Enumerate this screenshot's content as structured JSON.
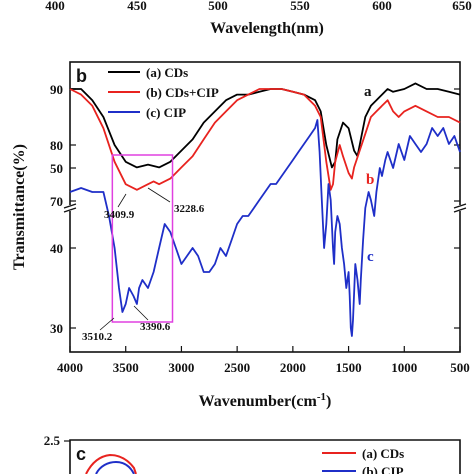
{
  "top_panel": {
    "xlabel": "Wavelength(nm)",
    "tick_labels": [
      "400",
      "450",
      "500",
      "550",
      "600",
      "650"
    ]
  },
  "chart_data": [
    {
      "type": "line",
      "panel": "b",
      "xlabel": "Wavenumber(cm",
      "xlabel_sup": "-1",
      "xlabel_close": ")",
      "ylabel": "Transmittance(%)",
      "xlim": [
        4000,
        500
      ],
      "x_ticks": [
        "4000",
        "3500",
        "3000",
        "2500",
        "2000",
        "1500",
        "1000",
        "500"
      ],
      "y_ticks_upper": [
        "90",
        "80",
        "70"
      ],
      "y_ticks_lower": [
        "50",
        "40",
        "30"
      ],
      "y_axis_break": true,
      "legend_position": "top-left",
      "colors": {
        "a": "#000000",
        "b": "#e8231f",
        "c": "#1f2fc8",
        "box": "#e040e0"
      },
      "series": [
        {
          "name": "(a) CDs",
          "letter": "a",
          "segment": "upper",
          "points": [
            [
              4000,
              90
            ],
            [
              3900,
              90
            ],
            [
              3800,
              88
            ],
            [
              3700,
              85
            ],
            [
              3600,
              80
            ],
            [
              3500,
              77
            ],
            [
              3400,
              76
            ],
            [
              3300,
              76.5
            ],
            [
              3200,
              76
            ],
            [
              3100,
              77
            ],
            [
              3000,
              79
            ],
            [
              2900,
              81
            ],
            [
              2800,
              84
            ],
            [
              2700,
              86
            ],
            [
              2600,
              88
            ],
            [
              2500,
              89
            ],
            [
              2400,
              89
            ],
            [
              2300,
              89.5
            ],
            [
              2200,
              90
            ],
            [
              2100,
              90
            ],
            [
              2000,
              89.5
            ],
            [
              1900,
              89
            ],
            [
              1800,
              88
            ],
            [
              1750,
              86
            ],
            [
              1700,
              80
            ],
            [
              1650,
              76
            ],
            [
              1620,
              77
            ],
            [
              1600,
              81
            ],
            [
              1550,
              84
            ],
            [
              1500,
              83
            ],
            [
              1450,
              79
            ],
            [
              1420,
              78
            ],
            [
              1400,
              80
            ],
            [
              1350,
              85
            ],
            [
              1300,
              87
            ],
            [
              1250,
              88
            ],
            [
              1200,
              89
            ],
            [
              1150,
              90
            ],
            [
              1100,
              89.5
            ],
            [
              1000,
              90
            ],
            [
              900,
              91
            ],
            [
              800,
              90
            ],
            [
              700,
              90
            ],
            [
              600,
              89.5
            ],
            [
              500,
              89
            ]
          ]
        },
        {
          "name": "(b) CDs+CIP",
          "letter": "b",
          "segment": "upper",
          "points": [
            [
              4000,
              90
            ],
            [
              3900,
              89
            ],
            [
              3800,
              87
            ],
            [
              3700,
              83
            ],
            [
              3600,
              77
            ],
            [
              3500,
              73
            ],
            [
              3400,
              72
            ],
            [
              3300,
              73
            ],
            [
              3250,
              73.5
            ],
            [
              3200,
              73
            ],
            [
              3100,
              74
            ],
            [
              3000,
              76
            ],
            [
              2900,
              78
            ],
            [
              2800,
              81
            ],
            [
              2700,
              84
            ],
            [
              2600,
              86
            ],
            [
              2500,
              88
            ],
            [
              2400,
              89
            ],
            [
              2300,
              90
            ],
            [
              2200,
              90
            ],
            [
              2100,
              90
            ],
            [
              2000,
              89.5
            ],
            [
              1900,
              89
            ],
            [
              1800,
              87
            ],
            [
              1750,
              85
            ],
            [
              1700,
              77
            ],
            [
              1660,
              72
            ],
            [
              1640,
              73
            ],
            [
              1620,
              77
            ],
            [
              1580,
              80
            ],
            [
              1550,
              78
            ],
            [
              1500,
              75
            ],
            [
              1470,
              74
            ],
            [
              1450,
              76
            ],
            [
              1400,
              79
            ],
            [
              1350,
              82
            ],
            [
              1300,
              85
            ],
            [
              1250,
              86
            ],
            [
              1200,
              87
            ],
            [
              1150,
              88
            ],
            [
              1100,
              86
            ],
            [
              1050,
              85
            ],
            [
              1000,
              86
            ],
            [
              900,
              87
            ],
            [
              800,
              86
            ],
            [
              700,
              85
            ],
            [
              600,
              85
            ],
            [
              500,
              84
            ]
          ]
        },
        {
          "name": "(c) CIP",
          "letter": "c",
          "segment": "lower",
          "points": [
            [
              4000,
              47
            ],
            [
              3900,
              47.5
            ],
            [
              3800,
              47
            ],
            [
              3700,
              47
            ],
            [
              3650,
              44
            ],
            [
              3600,
              40
            ],
            [
              3560,
              35
            ],
            [
              3530,
              32
            ],
            [
              3500,
              33
            ],
            [
              3470,
              35
            ],
            [
              3430,
              34
            ],
            [
              3400,
              33
            ],
            [
              3380,
              35
            ],
            [
              3350,
              36
            ],
            [
              3300,
              35
            ],
            [
              3250,
              37
            ],
            [
              3200,
              40
            ],
            [
              3150,
              43
            ],
            [
              3100,
              42
            ],
            [
              3050,
              40
            ],
            [
              3000,
              38
            ],
            [
              2950,
              39
            ],
            [
              2900,
              40
            ],
            [
              2850,
              39
            ],
            [
              2800,
              37
            ],
            [
              2750,
              37
            ],
            [
              2700,
              38
            ],
            [
              2650,
              40
            ],
            [
              2600,
              39
            ],
            [
              2550,
              41
            ],
            [
              2500,
              43
            ],
            [
              2450,
              44
            ],
            [
              2400,
              44
            ],
            [
              2350,
              45
            ],
            [
              2300,
              46
            ],
            [
              2250,
              47
            ],
            [
              2200,
              48
            ],
            [
              2150,
              48
            ],
            [
              2100,
              49
            ],
            [
              2050,
              50
            ],
            [
              2000,
              51
            ],
            [
              1950,
              52
            ],
            [
              1900,
              53
            ],
            [
              1850,
              54
            ],
            [
              1800,
              55
            ],
            [
              1780,
              56
            ],
            [
              1760,
              52
            ],
            [
              1740,
              46
            ],
            [
              1720,
              40
            ],
            [
              1700,
              43
            ],
            [
              1680,
              48
            ],
            [
              1660,
              46
            ],
            [
              1640,
              40
            ],
            [
              1630,
              38
            ],
            [
              1620,
              42
            ],
            [
              1600,
              44
            ],
            [
              1580,
              43
            ],
            [
              1560,
              40
            ],
            [
              1540,
              38
            ],
            [
              1520,
              35
            ],
            [
              1500,
              37
            ],
            [
              1490,
              34
            ],
            [
              1480,
              30
            ],
            [
              1470,
              29
            ],
            [
              1460,
              31
            ],
            [
              1440,
              38
            ],
            [
              1420,
              36
            ],
            [
              1400,
              33
            ],
            [
              1390,
              36
            ],
            [
              1370,
              41
            ],
            [
              1350,
              45
            ],
            [
              1320,
              47
            ],
            [
              1300,
              46
            ],
            [
              1270,
              44
            ],
            [
              1250,
              47
            ],
            [
              1220,
              50
            ],
            [
              1200,
              49
            ],
            [
              1170,
              51
            ],
            [
              1150,
              52
            ],
            [
              1100,
              50
            ],
            [
              1050,
              53
            ],
            [
              1000,
              51
            ],
            [
              950,
              54
            ],
            [
              900,
              53
            ],
            [
              850,
              52
            ],
            [
              800,
              53
            ],
            [
              750,
              55
            ],
            [
              700,
              54
            ],
            [
              650,
              55
            ],
            [
              600,
              53
            ],
            [
              550,
              54
            ],
            [
              500,
              52
            ]
          ]
        }
      ],
      "annotations": [
        {
          "text": "3409.9",
          "x": 3409.9,
          "segment": "upper"
        },
        {
          "text": "3228.6",
          "x": 3228.6,
          "segment": "upper"
        },
        {
          "text": "3510.2",
          "x": 3510.2,
          "segment": "lower"
        },
        {
          "text": "3390.6",
          "x": 3390.6,
          "segment": "lower"
        }
      ],
      "highlight_box": {
        "x_from": 3620,
        "x_to": 3080
      }
    },
    {
      "type": "line",
      "panel": "c",
      "y_ticks": [
        "2.5"
      ],
      "legend": [
        "(a) CDs",
        "(b) CIP"
      ],
      "colors": {
        "a": "#e8231f",
        "b": "#1f2fc8"
      }
    }
  ]
}
